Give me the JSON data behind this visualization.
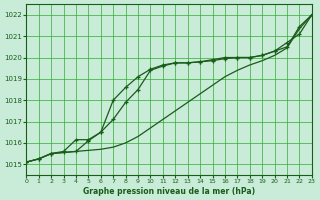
{
  "title": "Graphe pression niveau de la mer (hPa)",
  "background_color": "#c8ecd8",
  "grid_color": "#33aa33",
  "line_color": "#1a5c1a",
  "xlim": [
    0,
    23
  ],
  "ylim": [
    1014.5,
    1022.5
  ],
  "yticks": [
    1015,
    1016,
    1017,
    1018,
    1019,
    1020,
    1021,
    1022
  ],
  "xticks": [
    0,
    1,
    2,
    3,
    4,
    5,
    6,
    7,
    8,
    9,
    10,
    11,
    12,
    13,
    14,
    15,
    16,
    17,
    18,
    19,
    20,
    21,
    22,
    23
  ],
  "series1_x": [
    0,
    1,
    2,
    3,
    4,
    5,
    6,
    7,
    8,
    9,
    10,
    11,
    12,
    13,
    14,
    15,
    16,
    17,
    18,
    19,
    20,
    21,
    22,
    23
  ],
  "series1_y": [
    1015.1,
    1015.25,
    1015.5,
    1015.55,
    1015.6,
    1016.1,
    1016.5,
    1017.1,
    1017.9,
    1018.5,
    1019.4,
    1019.6,
    1019.75,
    1019.75,
    1019.8,
    1019.85,
    1019.95,
    1020.0,
    1020.0,
    1020.1,
    1020.3,
    1020.7,
    1021.1,
    1022.0
  ],
  "series2_x": [
    0,
    1,
    2,
    3,
    4,
    5,
    6,
    7,
    8,
    9,
    10,
    11,
    12,
    13,
    14,
    15,
    16,
    17,
    18,
    19,
    20,
    21,
    22,
    23
  ],
  "series2_y": [
    1015.1,
    1015.25,
    1015.5,
    1015.55,
    1015.6,
    1015.65,
    1015.7,
    1015.8,
    1016.0,
    1016.3,
    1016.7,
    1017.1,
    1017.5,
    1017.9,
    1018.3,
    1018.7,
    1019.1,
    1019.4,
    1019.65,
    1019.85,
    1020.1,
    1020.45,
    1021.35,
    1022.0
  ],
  "series3_x": [
    0,
    1,
    2,
    3,
    4,
    5,
    6,
    7,
    8,
    9,
    10,
    11,
    12,
    13,
    14,
    15,
    16,
    17,
    18,
    19,
    20,
    21,
    22,
    23
  ],
  "series3_y": [
    1015.1,
    1015.25,
    1015.5,
    1015.6,
    1016.15,
    1016.15,
    1016.5,
    1018.0,
    1018.6,
    1019.1,
    1019.45,
    1019.65,
    1019.75,
    1019.75,
    1019.8,
    1019.9,
    1020.0,
    1020.0,
    1020.0,
    1020.1,
    1020.3,
    1020.5,
    1021.45,
    1022.0
  ]
}
